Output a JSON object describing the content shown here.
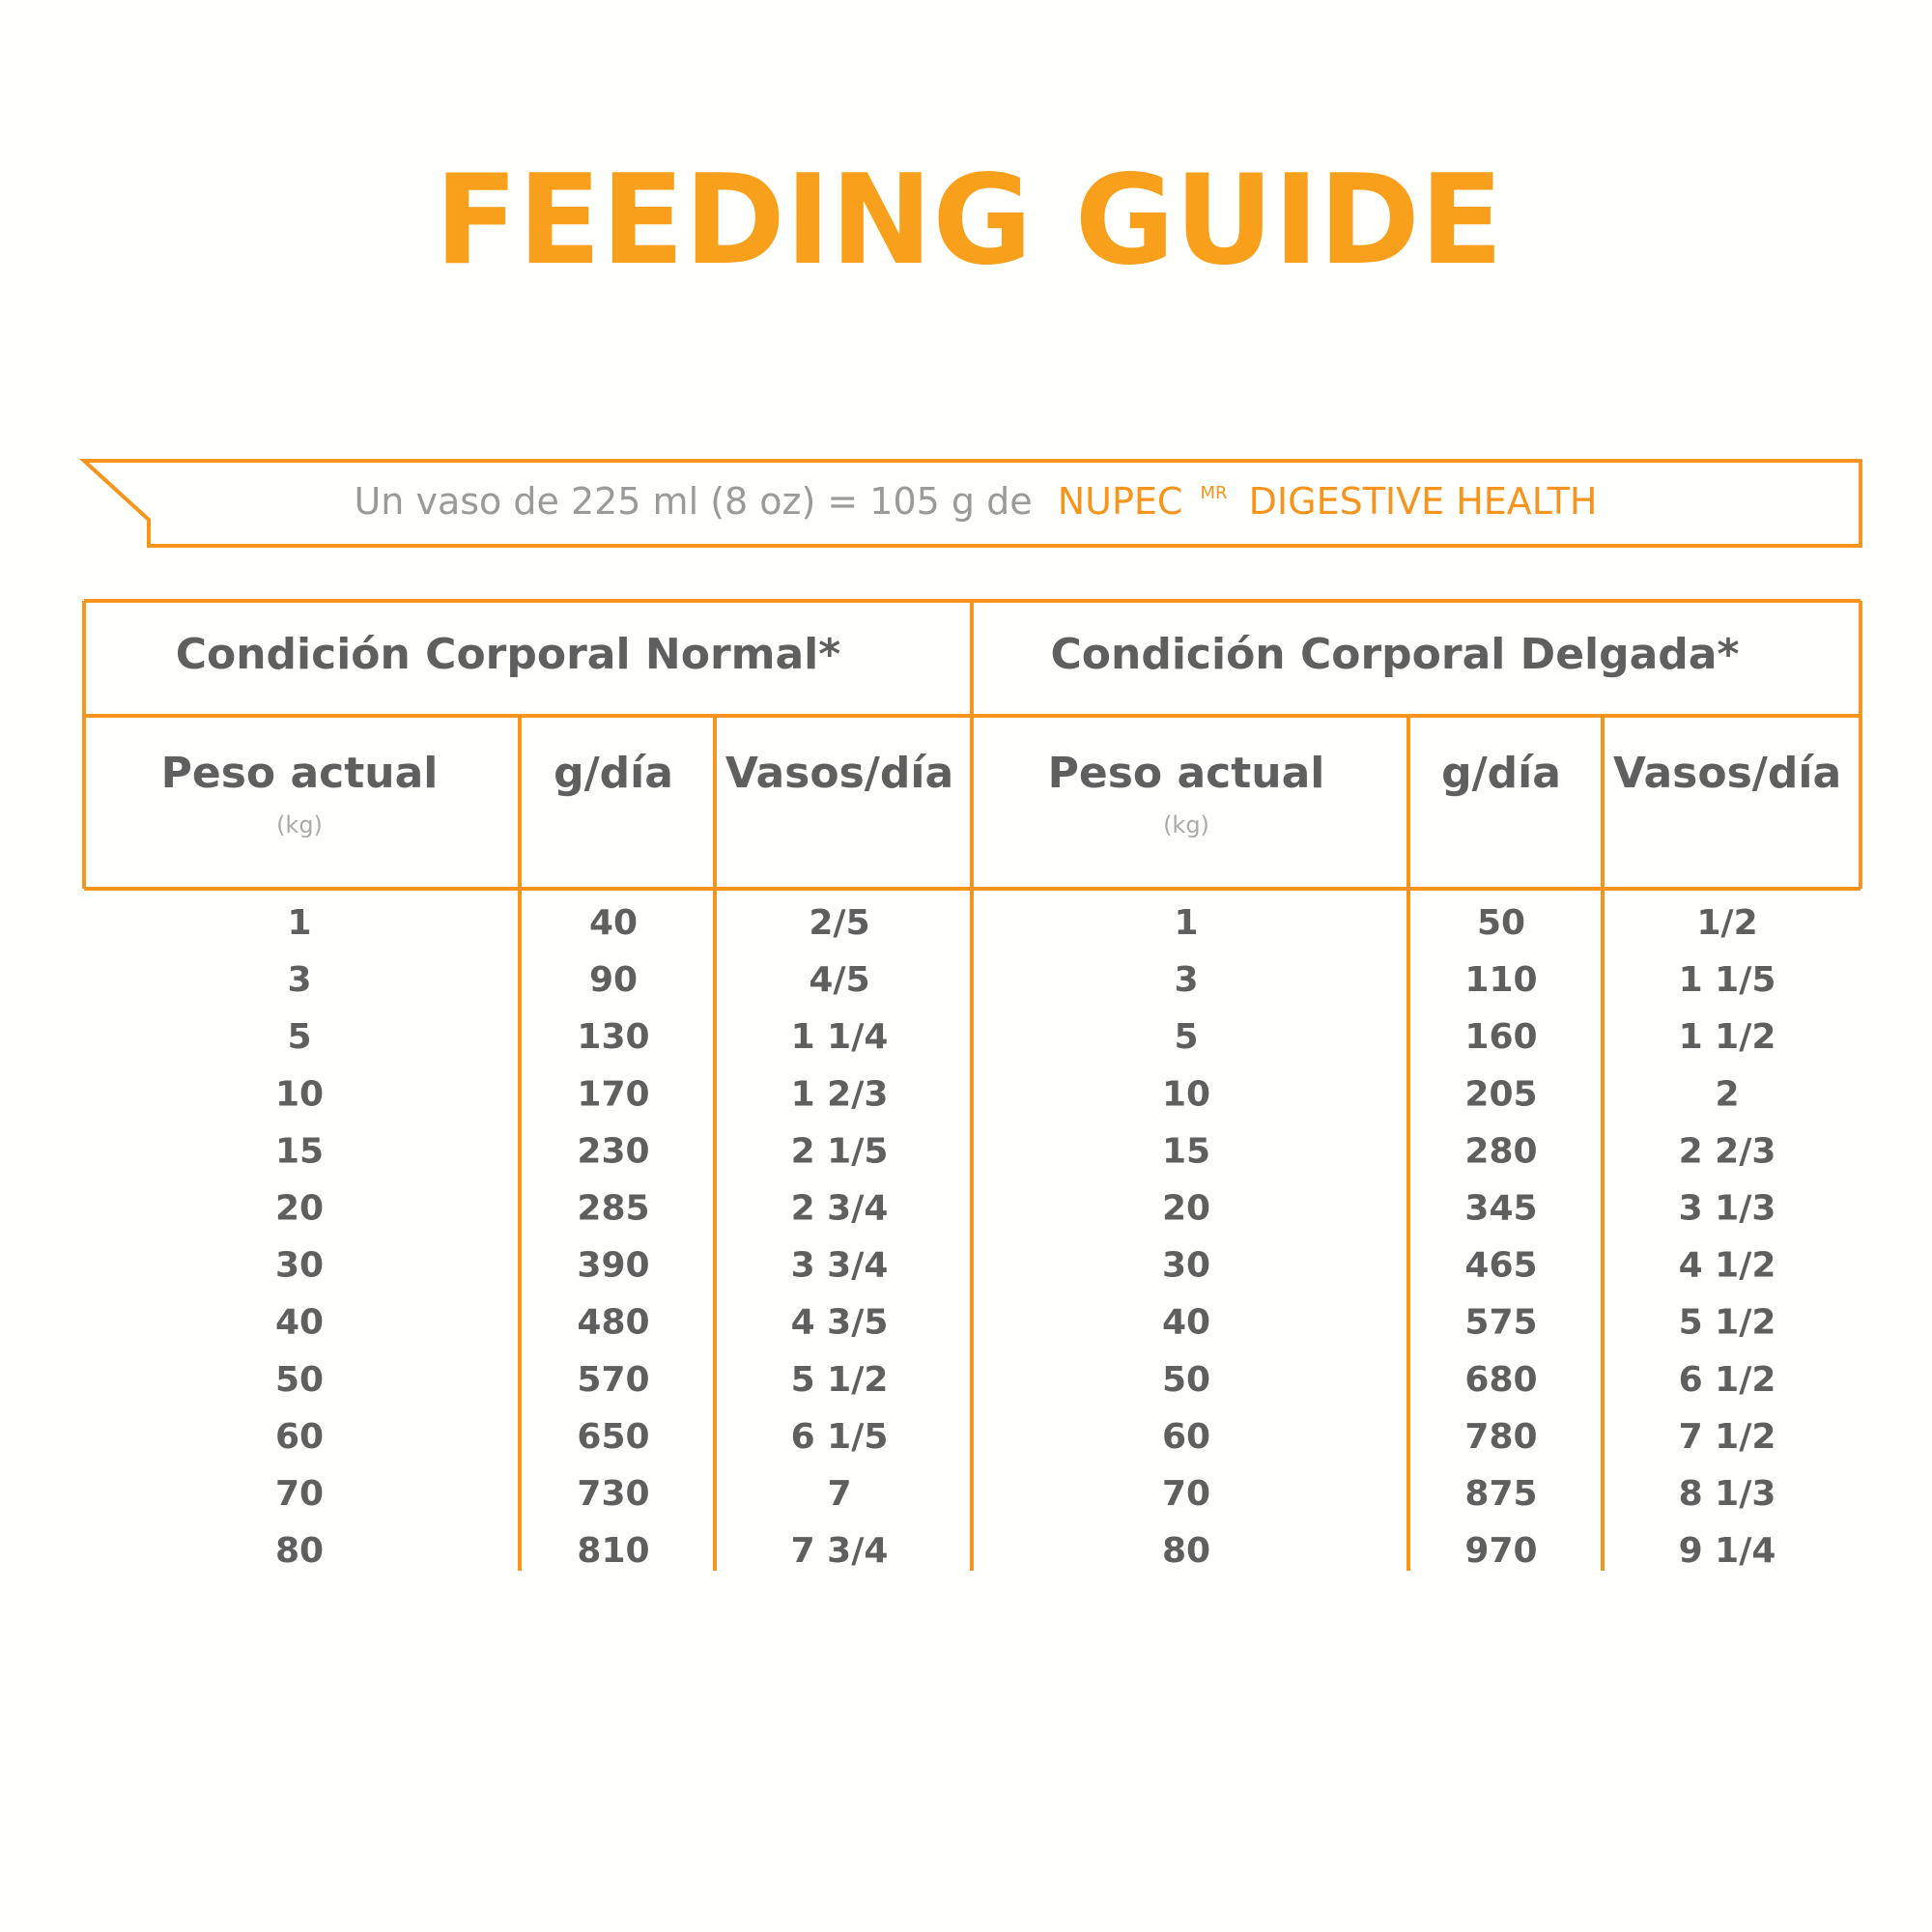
{
  "title": "FEEDING GUIDE",
  "banner": {
    "text": "Un vaso de 225 ml (8 oz) = 105 g de",
    "brand": "NUPEC",
    "mark": "MR",
    "product": "DIGESTIVE HEALTH"
  },
  "table": {
    "groups": [
      {
        "title": "Condición Corporal Normal*",
        "columns": [
          {
            "label": "Peso actual",
            "unit": "(kg)"
          },
          {
            "label": "g/día"
          },
          {
            "label": "Vasos/día"
          }
        ],
        "rows": [
          [
            1,
            40,
            "2/5"
          ],
          [
            3,
            90,
            "4/5"
          ],
          [
            5,
            130,
            "1 1/4"
          ],
          [
            10,
            170,
            "1 2/3"
          ],
          [
            15,
            230,
            "2 1/5"
          ],
          [
            20,
            285,
            "2 3/4"
          ],
          [
            30,
            390,
            "3 3/4"
          ],
          [
            40,
            480,
            "4 3/5"
          ],
          [
            50,
            570,
            "5 1/2"
          ],
          [
            60,
            650,
            "6 1/5"
          ],
          [
            70,
            730,
            "7"
          ],
          [
            80,
            810,
            "7 3/4"
          ]
        ]
      },
      {
        "title": "Condición Corporal Delgada*",
        "columns": [
          {
            "label": "Peso actual",
            "unit": "(kg)"
          },
          {
            "label": "g/día"
          },
          {
            "label": "Vasos/día"
          }
        ],
        "rows": [
          [
            1,
            50,
            "1/2"
          ],
          [
            3,
            110,
            "1 1/5"
          ],
          [
            5,
            160,
            "1 1/2"
          ],
          [
            10,
            205,
            "2"
          ],
          [
            15,
            280,
            "2 2/3"
          ],
          [
            20,
            345,
            "3 1/3"
          ],
          [
            30,
            465,
            "4 1/2"
          ],
          [
            40,
            575,
            "5 1/2"
          ],
          [
            50,
            680,
            "6 1/2"
          ],
          [
            60,
            780,
            "7 1/2"
          ],
          [
            70,
            875,
            "8 1/3"
          ],
          [
            80,
            970,
            "9 1/4"
          ]
        ]
      }
    ]
  }
}
